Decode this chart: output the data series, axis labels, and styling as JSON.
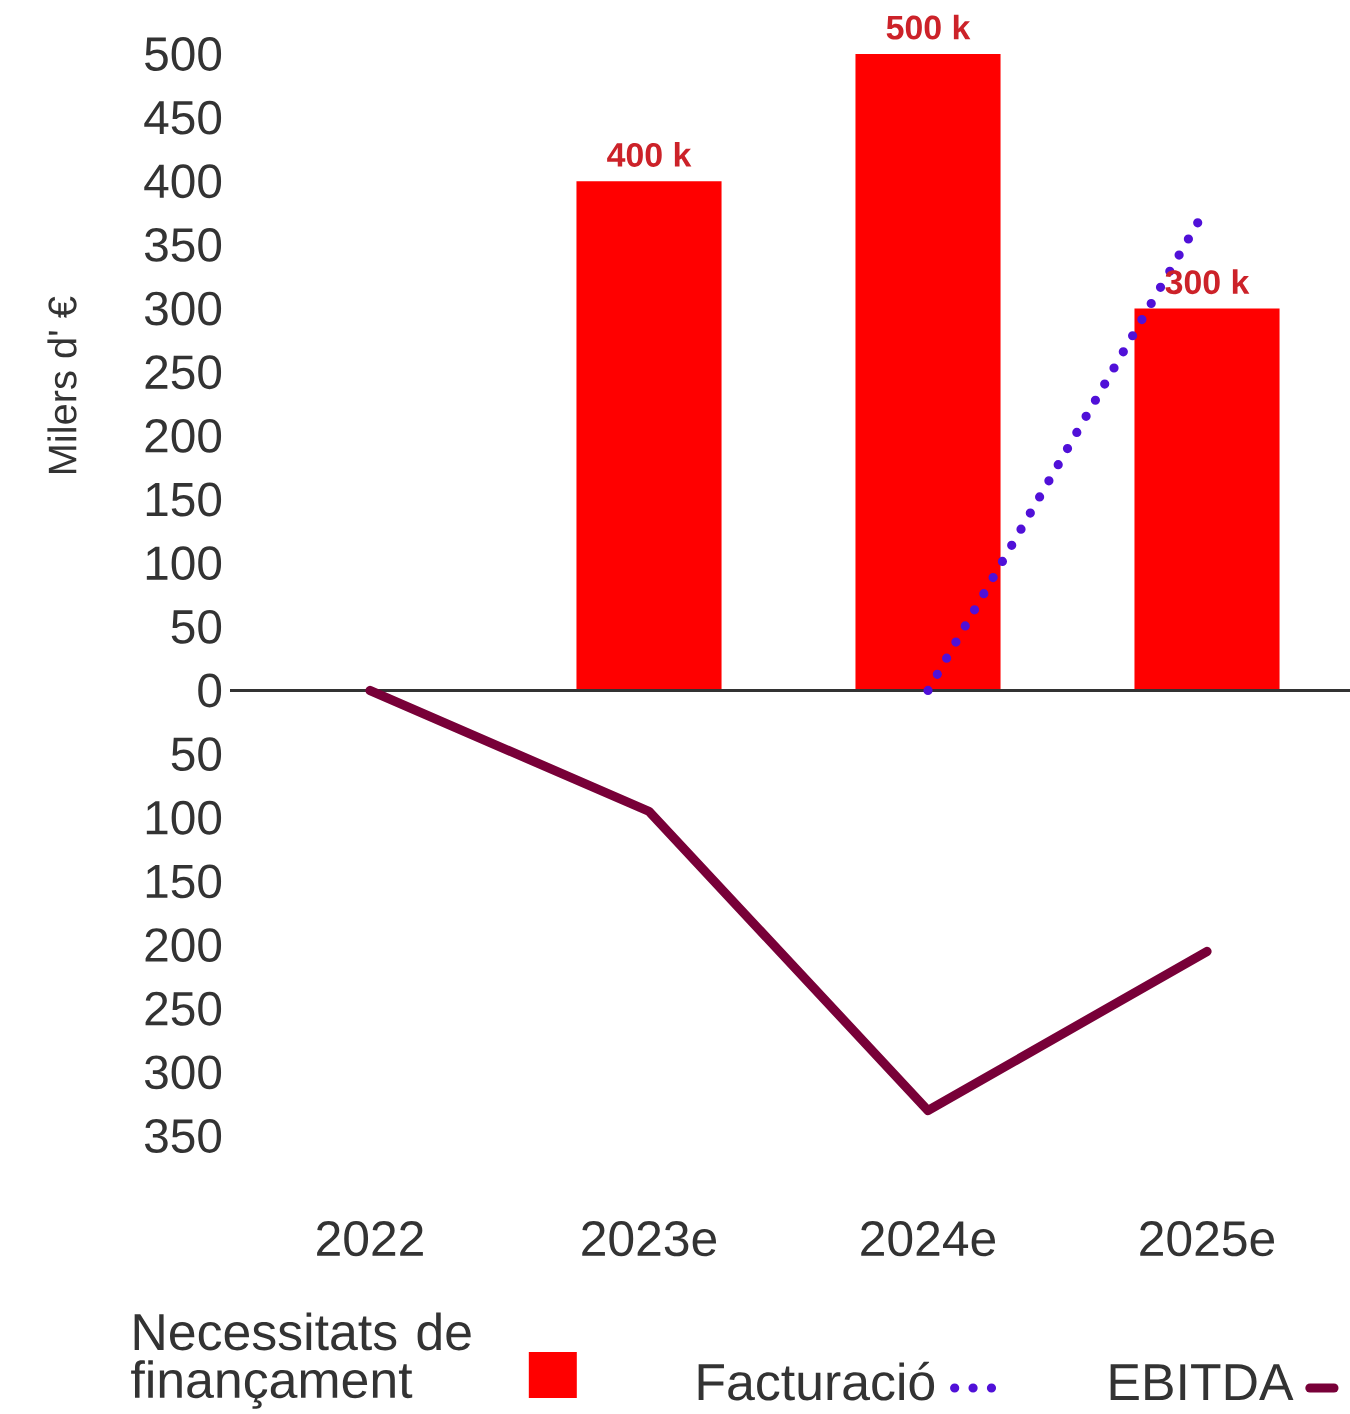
{
  "chart_data": {
    "type": "bar",
    "ylabel": "Milers d' €",
    "categories": [
      "2022",
      "2023e",
      "2024e",
      "2025e"
    ],
    "series": [
      {
        "name": "Necessitats de finançament",
        "color": "#ff0000",
        "values": [
          null,
          400,
          500,
          300
        ],
        "value_labels": [
          null,
          "400 k",
          "500 k",
          "300 k"
        ]
      },
      {
        "name": "Facturació",
        "type": "line",
        "line_style": "dotted",
        "color": "#5010d8",
        "values": [
          null,
          null,
          0,
          380
        ]
      },
      {
        "name": "EBITDA",
        "type": "line",
        "line_style": "solid",
        "color": "#780038",
        "values": [
          0,
          -95,
          -330,
          -205
        ]
      }
    ],
    "ylim": [
      -350,
      500
    ],
    "yticks": [
      {
        "value": -350,
        "label": "350"
      },
      {
        "value": -300,
        "label": "300"
      },
      {
        "value": -250,
        "label": "250"
      },
      {
        "value": -200,
        "label": "200"
      },
      {
        "value": -150,
        "label": "150"
      },
      {
        "value": -100,
        "label": "100"
      },
      {
        "value": -50,
        "label": "50"
      },
      0,
      50,
      100,
      150,
      200,
      250,
      300,
      350,
      400,
      450,
      500
    ],
    "legend": "bottom"
  }
}
